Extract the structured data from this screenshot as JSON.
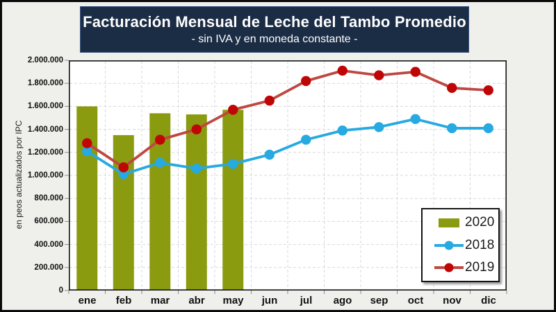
{
  "page": {
    "background": "#EFEFEC",
    "frame_color": "#0a0a0a"
  },
  "header": {
    "title": "Facturación Mensual de Leche del Tambo Promedio",
    "subtitle": "- sin IVA y en moneda constante -",
    "background": "#1B2C45",
    "text_color": "#FFFFFF"
  },
  "y_axis": {
    "title": "en peos actualizados por IPC",
    "tick_labels": [
      "0",
      "200.000",
      "400.000",
      "600.000",
      "800.000",
      "1.000.000",
      "1.200.000",
      "1.400.000",
      "1.600.000",
      "1.800.000",
      "2.000.000"
    ]
  },
  "x_axis": {
    "tick_labels": [
      "ene",
      "feb",
      "mar",
      "abr",
      "may",
      "jun",
      "jul",
      "ago",
      "sep",
      "oct",
      "nov",
      "dic"
    ]
  },
  "legend": {
    "items": [
      {
        "label": "2020",
        "type": "bar",
        "color": "#8A9B0F",
        "line_color": "#8A9B0F"
      },
      {
        "label": "2018",
        "type": "line",
        "color": "#27A9E1",
        "line_color": "#27A9E1"
      },
      {
        "label": "2019",
        "type": "line",
        "color": "#C00505",
        "line_color": "#BF4742"
      }
    ]
  },
  "chart_data": {
    "type": "combo",
    "title": "Facturación Mensual de Leche del Tambo Promedio",
    "subtitle": "- sin IVA y en moneda constante -",
    "ylabel": "en peos actualizados por IPC",
    "xlabel": "",
    "ylim": [
      0,
      2000000
    ],
    "y_tick_step": 200000,
    "grid": true,
    "gridline_color": "#D9D9D9",
    "legend_position": "inside-bottom-right",
    "categories": [
      "ene",
      "feb",
      "mar",
      "abr",
      "may",
      "jun",
      "jul",
      "ago",
      "sep",
      "oct",
      "nov",
      "dic"
    ],
    "series": [
      {
        "name": "2020",
        "type": "bar",
        "color": "#8A9B0F",
        "values": [
          1600000,
          1350000,
          1540000,
          1530000,
          1570000,
          null,
          null,
          null,
          null,
          null,
          null,
          null
        ]
      },
      {
        "name": "2018",
        "type": "line",
        "color": "#27A9E1",
        "marker_color": "#27A9E1",
        "values": [
          1210000,
          1010000,
          1110000,
          1060000,
          1100000,
          1180000,
          1310000,
          1390000,
          1420000,
          1490000,
          1410000,
          1410000
        ]
      },
      {
        "name": "2019",
        "type": "line",
        "color": "#BF4742",
        "marker_color": "#C00505",
        "values": [
          1280000,
          1070000,
          1310000,
          1400000,
          1570000,
          1650000,
          1820000,
          1910000,
          1870000,
          1900000,
          1760000,
          1740000
        ]
      }
    ]
  }
}
